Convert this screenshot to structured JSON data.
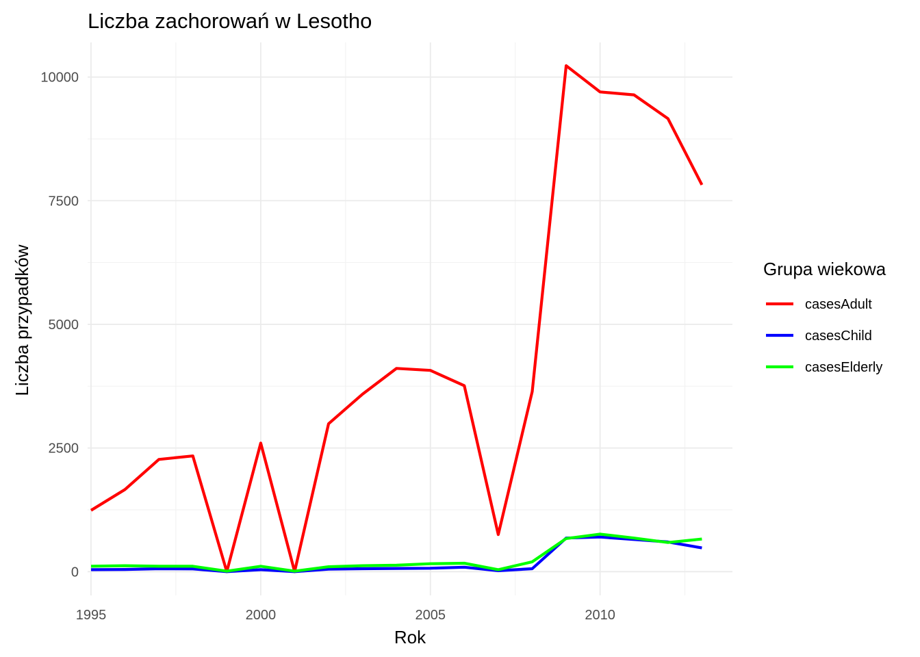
{
  "chart_data": {
    "type": "line",
    "title": "Liczba zachorowań w Lesotho",
    "xlabel": "Rok",
    "ylabel": "Liczba przypadków",
    "x": [
      1995,
      1996,
      1997,
      1998,
      1999,
      2000,
      2001,
      2002,
      2003,
      2004,
      2005,
      2006,
      2007,
      2008,
      2009,
      2010,
      2011,
      2012,
      2013
    ],
    "xlim": [
      1994.9,
      2013.9
    ],
    "ylim": [
      -480,
      10700
    ],
    "x_ticks": [
      1995,
      2000,
      2005,
      2010
    ],
    "y_ticks": [
      0,
      2500,
      5000,
      7500,
      10000
    ],
    "x_tick_labels": [
      "1995",
      "2000",
      "2005",
      "2010"
    ],
    "y_tick_labels": [
      "0",
      "2500",
      "5000",
      "7500",
      "10000"
    ],
    "grid": true,
    "legend": {
      "title": "Grupa wiekowa",
      "position": "right"
    },
    "series": [
      {
        "name": "casesAdult",
        "color": "#ff0000",
        "values": [
          1240,
          1660,
          2270,
          2340,
          0,
          2600,
          0,
          2990,
          3590,
          4110,
          4070,
          3760,
          750,
          3640,
          10230,
          9700,
          9640,
          9160,
          7820
        ]
      },
      {
        "name": "casesChild",
        "color": "#0000ff",
        "values": [
          40,
          45,
          60,
          55,
          0,
          40,
          0,
          50,
          60,
          65,
          70,
          90,
          20,
          60,
          680,
          700,
          650,
          600,
          480
        ]
      },
      {
        "name": "casesElderly",
        "color": "#00ff00",
        "values": [
          110,
          120,
          110,
          110,
          10,
          110,
          10,
          100,
          120,
          130,
          160,
          170,
          40,
          200,
          670,
          760,
          680,
          590,
          660
        ]
      }
    ]
  }
}
